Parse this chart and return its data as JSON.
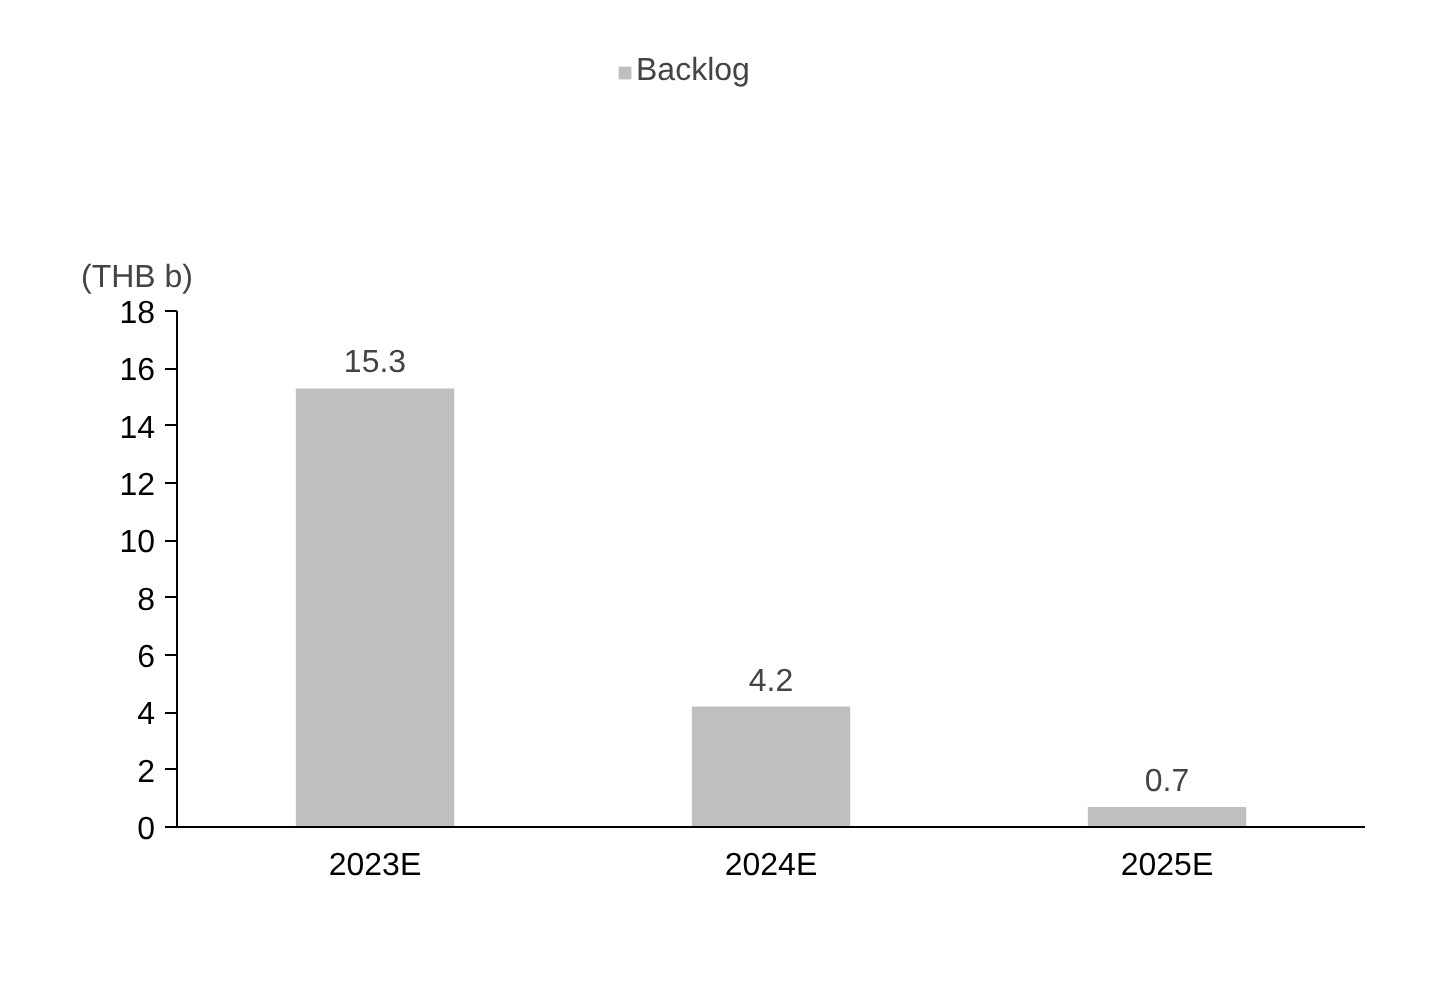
{
  "chart_data": {
    "type": "bar",
    "ylabel": "(THB b)",
    "categories": [
      "2023E",
      "2024E",
      "2025E"
    ],
    "series": [
      {
        "name": "Backlog",
        "color": "#bfbfbf",
        "values": [
          15.3,
          4.2,
          0.7
        ]
      }
    ],
    "ylim": [
      0,
      18
    ],
    "yticks": [
      0,
      2,
      4,
      6,
      8,
      10,
      12,
      14,
      16,
      18
    ],
    "data_labels": true,
    "legend": "top",
    "grid": false
  }
}
